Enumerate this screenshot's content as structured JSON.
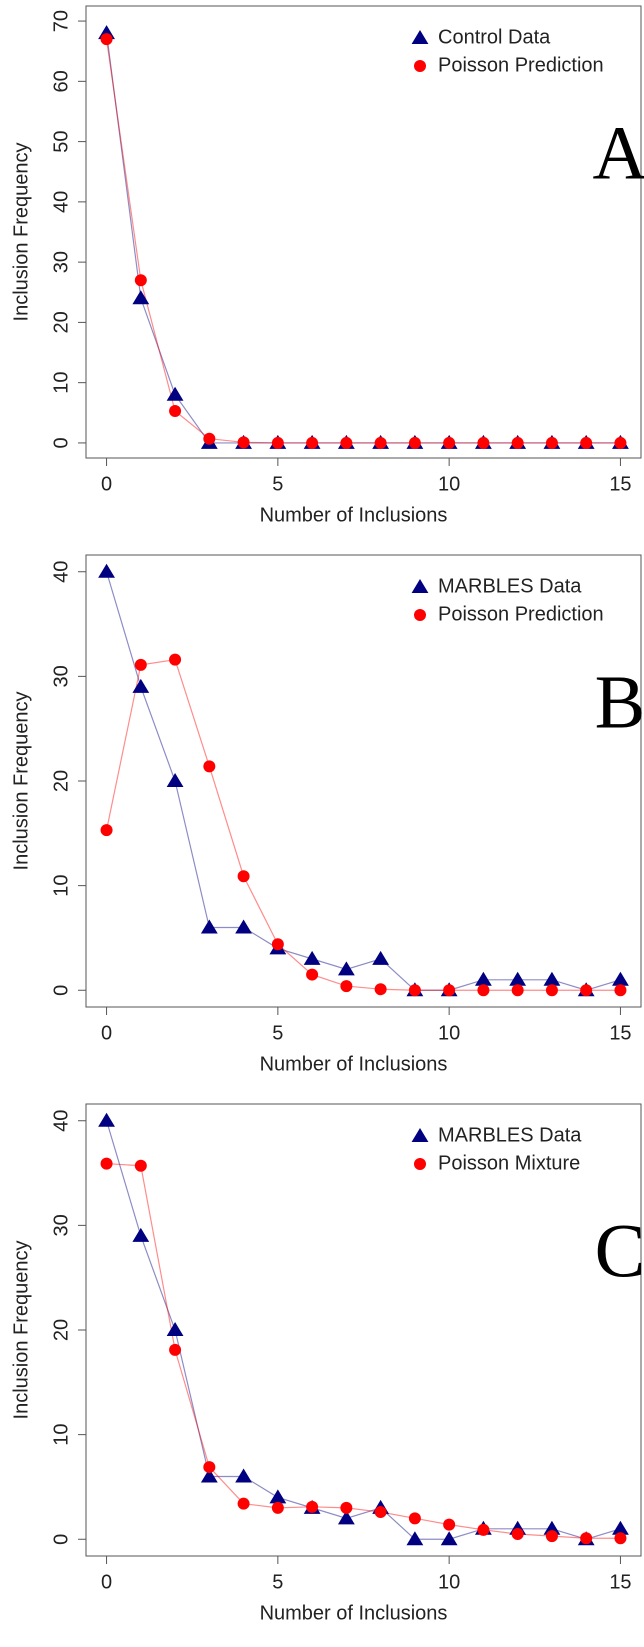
{
  "chart_data": [
    {
      "type": "line",
      "annotation": "A",
      "xlabel": "Number of Inclusions",
      "ylabel": "Inclusion Frequency",
      "x": [
        0,
        1,
        2,
        3,
        4,
        5,
        6,
        7,
        8,
        9,
        10,
        11,
        12,
        13,
        14,
        15
      ],
      "series": [
        {
          "name": "Control Data",
          "color": "#000080",
          "marker": "triangle",
          "values": [
            68,
            24,
            8,
            0,
            0,
            0,
            0,
            0,
            0,
            0,
            0,
            0,
            0,
            0,
            0,
            0
          ]
        },
        {
          "name": "Poisson Prediction",
          "color": "#ff0000",
          "marker": "circle",
          "values": [
            67,
            27,
            5.3,
            0.7,
            0.1,
            0,
            0,
            0,
            0,
            0,
            0,
            0,
            0,
            0,
            0,
            0
          ]
        }
      ],
      "xlim": [
        -0.6,
        15.6
      ],
      "ylim": [
        -2.5,
        72.5
      ],
      "xticks": [
        0,
        5,
        10,
        15
      ],
      "yticks": [
        0,
        10,
        20,
        30,
        40,
        50,
        60,
        70
      ]
    },
    {
      "type": "line",
      "annotation": "B",
      "xlabel": "Number of Inclusions",
      "ylabel": "Inclusion Frequency",
      "x": [
        0,
        1,
        2,
        3,
        4,
        5,
        6,
        7,
        8,
        9,
        10,
        11,
        12,
        13,
        14,
        15
      ],
      "series": [
        {
          "name": "MARBLES Data",
          "color": "#000080",
          "marker": "triangle",
          "values": [
            40,
            29,
            20,
            6,
            6,
            4,
            3,
            2,
            3,
            0,
            0,
            1,
            1,
            1,
            0,
            1
          ]
        },
        {
          "name": "Poisson Prediction",
          "color": "#ff0000",
          "marker": "circle",
          "values": [
            15.3,
            31.1,
            31.6,
            21.4,
            10.9,
            4.4,
            1.5,
            0.4,
            0.1,
            0,
            0,
            0,
            0,
            0,
            0,
            0
          ]
        }
      ],
      "xlim": [
        -0.6,
        15.6
      ],
      "ylim": [
        -1.6,
        41.6
      ],
      "xticks": [
        0,
        5,
        10,
        15
      ],
      "yticks": [
        0,
        10,
        20,
        30,
        40
      ]
    },
    {
      "type": "line",
      "annotation": "C",
      "xlabel": "Number of Inclusions",
      "ylabel": "Inclusion Frequency",
      "x": [
        0,
        1,
        2,
        3,
        4,
        5,
        6,
        7,
        8,
        9,
        10,
        11,
        12,
        13,
        14,
        15
      ],
      "series": [
        {
          "name": "MARBLES Data",
          "color": "#000080",
          "marker": "triangle",
          "values": [
            40,
            29,
            20,
            6,
            6,
            4,
            3,
            2,
            3,
            0,
            0,
            1,
            1,
            1,
            0,
            1
          ]
        },
        {
          "name": "Poisson Mixture",
          "color": "#ff0000",
          "marker": "circle",
          "values": [
            35.9,
            35.7,
            18.1,
            6.9,
            3.4,
            3.0,
            3.1,
            3.0,
            2.6,
            2.0,
            1.4,
            0.9,
            0.5,
            0.3,
            0.1,
            0.1
          ]
        }
      ],
      "xlim": [
        -0.6,
        15.6
      ],
      "ylim": [
        -1.6,
        41.6
      ],
      "xticks": [
        0,
        5,
        10,
        15
      ],
      "yticks": [
        0,
        10,
        20,
        30,
        40
      ]
    }
  ]
}
